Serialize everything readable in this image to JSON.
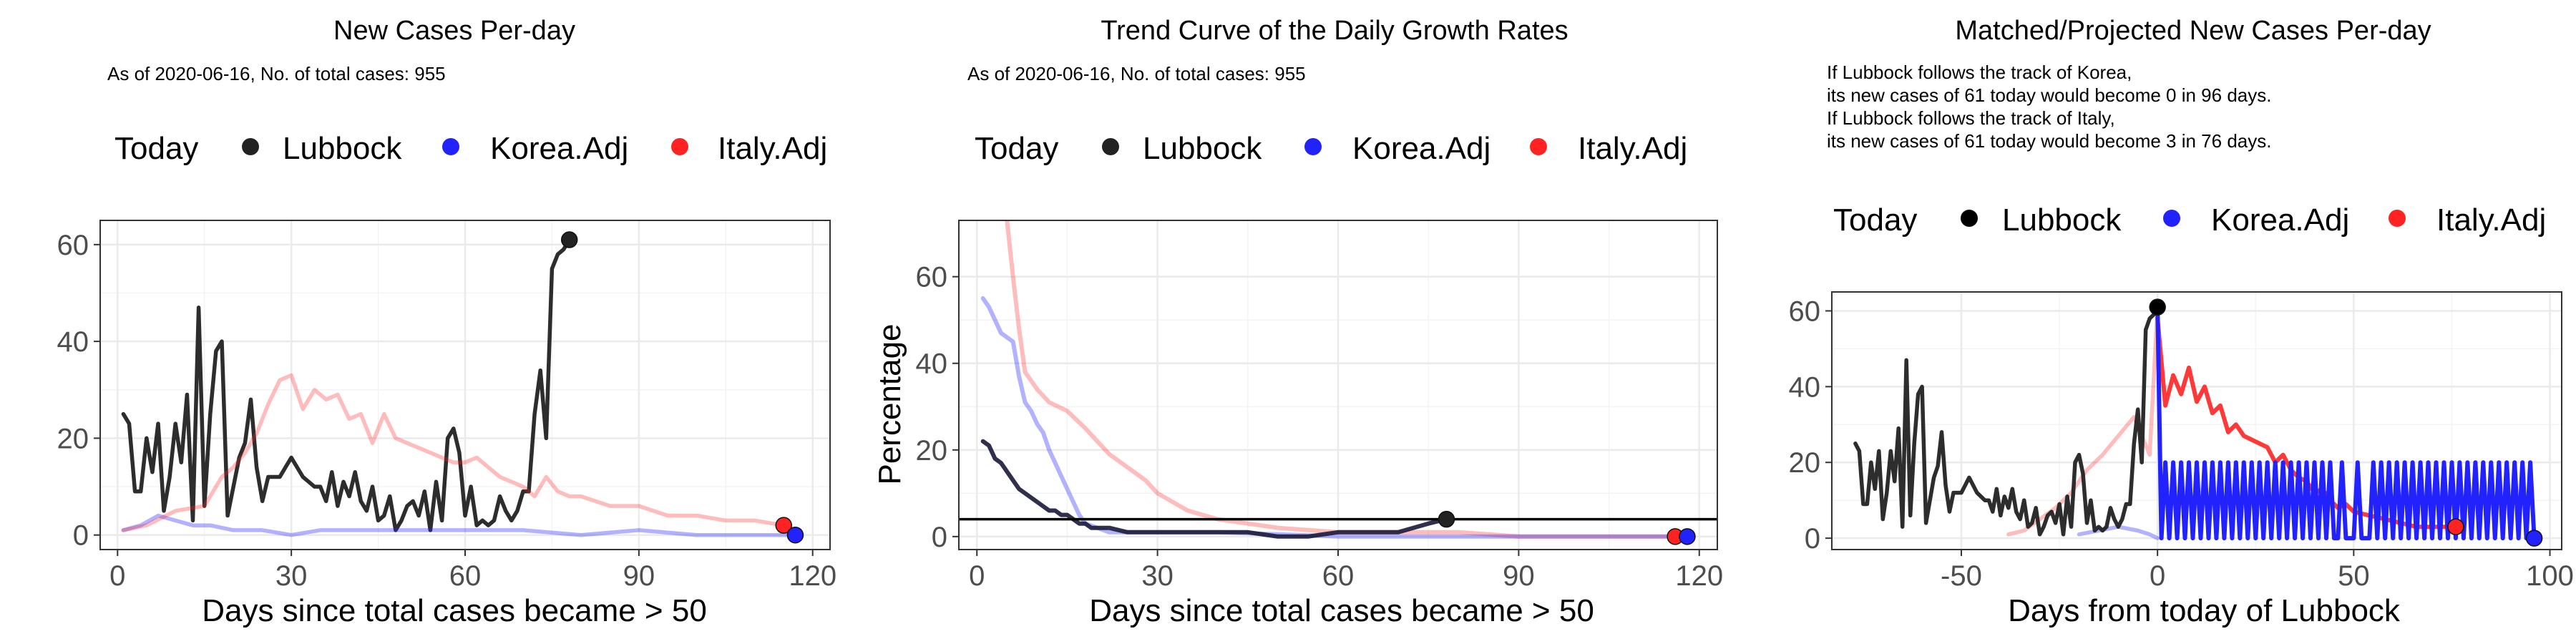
{
  "legend_today_label": "Today",
  "colors": {
    "lubbock": "#222222",
    "korea": "#2222ff",
    "italy": "#ff2222"
  },
  "chart_data": [
    {
      "type": "line",
      "title": "New Cases Per-day",
      "subtitle": "As of 2020-06-16, No. of total cases: 955",
      "xlabel": "Days since total cases became > 50",
      "ylabel": "",
      "xlim": [
        -3,
        123
      ],
      "ylim": [
        -3,
        65
      ],
      "xticks": [
        0,
        30,
        60,
        90,
        120
      ],
      "yticks": [
        0,
        20,
        40,
        60
      ],
      "legend": [
        "Lubbock",
        "Korea.Adj",
        "Italy.Adj"
      ],
      "series": [
        {
          "name": "Lubbock",
          "color": "#222222",
          "opacity": 0.95,
          "width": 5.5,
          "x": [
            1,
            2,
            3,
            4,
            5,
            6,
            7,
            8,
            9,
            10,
            11,
            12,
            13,
            14,
            15,
            16,
            17,
            18,
            19,
            20,
            21,
            22,
            23,
            24,
            25,
            26,
            27,
            28,
            29,
            30,
            31,
            32,
            33,
            34,
            35,
            36,
            37,
            38,
            39,
            40,
            41,
            42,
            43,
            44,
            45,
            46,
            47,
            48,
            49,
            50,
            51,
            52,
            53,
            54,
            55,
            56,
            57,
            58,
            59,
            60,
            61,
            62,
            63,
            64,
            65,
            66,
            67,
            68,
            69,
            70,
            71,
            72,
            73,
            74,
            75,
            76,
            77,
            78
          ],
          "y": [
            25,
            23,
            9,
            9,
            20,
            13,
            23,
            5,
            12,
            23,
            15,
            29,
            3,
            47,
            6,
            25,
            38,
            40,
            4,
            10,
            16,
            19,
            28,
            14,
            7,
            12,
            12,
            12,
            14,
            16,
            14,
            12,
            11,
            10,
            10,
            7,
            13,
            6,
            11,
            8,
            13,
            7,
            5,
            10,
            3,
            4,
            8,
            1,
            3,
            6,
            7,
            4,
            9,
            1,
            11,
            3,
            20,
            22,
            17,
            4,
            10,
            2,
            3,
            2,
            3,
            8,
            5,
            3,
            5,
            9,
            9,
            25,
            34,
            20,
            55,
            58,
            59,
            61
          ]
        },
        {
          "name": "Korea.Adj",
          "color": "#2222ff",
          "opacity": 0.35,
          "width": 5.5,
          "x": [
            1,
            4,
            7,
            10,
            13,
            16,
            20,
            25,
            30,
            35,
            40,
            50,
            60,
            70,
            80,
            90,
            100,
            110,
            117
          ],
          "y": [
            1,
            2,
            4,
            3,
            2,
            2,
            1,
            1,
            0,
            1,
            1,
            1,
            1,
            1,
            0,
            1,
            0,
            0,
            0
          ]
        },
        {
          "name": "Italy.Adj",
          "color": "#ff2222",
          "opacity": 0.3,
          "width": 5.5,
          "x": [
            1,
            5,
            10,
            15,
            18,
            20,
            22,
            24,
            26,
            28,
            30,
            32,
            34,
            36,
            38,
            40,
            42,
            44,
            46,
            48,
            50,
            52,
            54,
            56,
            58,
            60,
            62,
            64,
            66,
            68,
            70,
            72,
            74,
            76,
            78,
            80,
            85,
            90,
            95,
            100,
            105,
            110,
            115
          ],
          "y": [
            1,
            2,
            5,
            6,
            12,
            14,
            17,
            21,
            27,
            32,
            33,
            26,
            30,
            28,
            29,
            24,
            25,
            19,
            25,
            20,
            19,
            18,
            17,
            16,
            15,
            15,
            16,
            14,
            12,
            11,
            10,
            8,
            12,
            9,
            8,
            8,
            6,
            6,
            4,
            4,
            3,
            3,
            2
          ]
        }
      ],
      "today_points": [
        {
          "name": "Lubbock",
          "x": 78,
          "y": 61,
          "color": "#222222"
        },
        {
          "name": "Italy.Adj",
          "x": 115,
          "y": 2,
          "color": "#ff2222"
        },
        {
          "name": "Korea.Adj",
          "x": 117,
          "y": 0,
          "color": "#2222ff"
        }
      ]
    },
    {
      "type": "line",
      "title": "Trend Curve of the Daily Growth Rates",
      "subtitle": "As of 2020-06-16, No. of total cases: 955",
      "xlabel": "Days since total cases became > 50",
      "ylabel": "Percentage",
      "xlim": [
        -3,
        123
      ],
      "ylim": [
        -3,
        73
      ],
      "xticks": [
        0,
        30,
        60,
        90,
        120
      ],
      "yticks": [
        0,
        20,
        40,
        60
      ],
      "hline": 4,
      "legend": [
        "Lubbock",
        "Korea.Adj",
        "Italy.Adj"
      ],
      "series": [
        {
          "name": "Italy.Adj",
          "color": "#ff2222",
          "opacity": 0.3,
          "width": 6,
          "x": [
            5,
            6,
            7,
            8,
            10,
            12,
            15,
            18,
            20,
            22,
            25,
            28,
            30,
            35,
            40,
            45,
            50,
            60,
            70,
            80,
            90,
            100,
            110,
            116
          ],
          "y": [
            73,
            60,
            48,
            38,
            34,
            31,
            29,
            25,
            22,
            19,
            16,
            13,
            10,
            6,
            4,
            3,
            2,
            1,
            1,
            1,
            0,
            0,
            0,
            0
          ]
        },
        {
          "name": "Korea.Adj",
          "color": "#2222ff",
          "opacity": 0.35,
          "width": 6,
          "x": [
            1,
            2,
            3,
            4,
            5,
            6,
            7,
            8,
            9,
            10,
            11,
            12,
            13,
            14,
            15,
            16,
            17,
            18,
            20,
            22,
            25,
            30,
            40,
            60,
            80,
            100,
            118
          ],
          "y": [
            55,
            53,
            50,
            47,
            46,
            45,
            37,
            31,
            29,
            26,
            24,
            20,
            17,
            14,
            11,
            8,
            5,
            3,
            2,
            1,
            1,
            1,
            1,
            0,
            0,
            0,
            0
          ]
        },
        {
          "name": "Lubbock",
          "color": "#1a1a3a",
          "opacity": 0.9,
          "width": 6,
          "x": [
            1,
            2,
            3,
            4,
            5,
            6,
            7,
            8,
            9,
            10,
            11,
            12,
            13,
            14,
            15,
            16,
            17,
            18,
            19,
            20,
            22,
            25,
            30,
            35,
            40,
            45,
            50,
            55,
            60,
            65,
            70,
            75,
            78
          ],
          "y": [
            22,
            21,
            18,
            17,
            15,
            13,
            11,
            10,
            9,
            8,
            7,
            6,
            6,
            5,
            5,
            4,
            3,
            3,
            2,
            2,
            2,
            1,
            1,
            1,
            1,
            1,
            0,
            0,
            1,
            1,
            1,
            3,
            4
          ]
        }
      ],
      "today_points": [
        {
          "name": "Lubbock",
          "x": 78,
          "y": 4,
          "color": "#222222"
        },
        {
          "name": "Italy.Adj",
          "x": 116,
          "y": 0,
          "color": "#ff2222"
        },
        {
          "name": "Korea.Adj",
          "x": 118,
          "y": 0,
          "color": "#2222ff"
        }
      ]
    },
    {
      "type": "line",
      "title": "Matched/Projected New Cases Per-day",
      "notes": [
        "If Lubbock follows the track of Korea,",
        "its new cases of 61 today would become 0 in 96 days.",
        "If Lubbock follows the track of Italy,",
        "its new cases of 61 today would become 3 in 76 days."
      ],
      "xlabel": "Days from today of Lubbock",
      "ylabel": "",
      "xlim": [
        -83,
        103
      ],
      "ylim": [
        -3,
        65
      ],
      "xticks": [
        -50,
        0,
        50,
        100
      ],
      "yticks": [
        0,
        20,
        40,
        60
      ],
      "legend": [
        "Lubbock",
        "Korea.Adj",
        "Italy.Adj"
      ],
      "series": [
        {
          "name": "Italy.Adj (matched)",
          "color": "#ff2222",
          "opacity": 0.3,
          "width": 5.5,
          "x": [
            -38,
            -34,
            -30,
            -26,
            -22,
            -18,
            -14,
            -10,
            -6,
            -2,
            0
          ],
          "y": [
            1,
            2,
            5,
            8,
            12,
            18,
            22,
            27,
            32,
            22,
            61
          ]
        },
        {
          "name": "Korea.Adj (matched)",
          "color": "#2222ff",
          "opacity": 0.35,
          "width": 5.5,
          "x": [
            -20,
            -15,
            -10,
            -5,
            -2,
            0
          ],
          "y": [
            1,
            2,
            3,
            2,
            1,
            0
          ]
        },
        {
          "name": "Lubbock",
          "color": "#222222",
          "opacity": 0.95,
          "width": 5.5,
          "x": [
            -77,
            -76,
            -75,
            -74,
            -73,
            -72,
            -71,
            -70,
            -69,
            -68,
            -67,
            -66,
            -65,
            -64,
            -63,
            -62,
            -61,
            -60,
            -59,
            -58,
            -57,
            -56,
            -55,
            -54,
            -53,
            -52,
            -51,
            -50,
            -49,
            -48,
            -47,
            -46,
            -45,
            -44,
            -43,
            -42,
            -41,
            -40,
            -39,
            -38,
            -37,
            -36,
            -35,
            -34,
            -33,
            -32,
            -31,
            -30,
            -29,
            -28,
            -27,
            -26,
            -25,
            -24,
            -23,
            -22,
            -21,
            -20,
            -19,
            -18,
            -17,
            -16,
            -15,
            -14,
            -13,
            -12,
            -11,
            -10,
            -9,
            -8,
            -7,
            -6,
            -5,
            -4,
            -3,
            -2,
            -1,
            0
          ],
          "y": [
            25,
            23,
            9,
            9,
            20,
            13,
            23,
            5,
            12,
            23,
            15,
            29,
            3,
            47,
            6,
            25,
            38,
            40,
            4,
            10,
            16,
            19,
            28,
            14,
            7,
            12,
            12,
            12,
            14,
            16,
            14,
            12,
            11,
            10,
            10,
            7,
            13,
            6,
            11,
            8,
            13,
            7,
            5,
            10,
            3,
            4,
            8,
            1,
            3,
            6,
            7,
            4,
            9,
            1,
            11,
            3,
            20,
            22,
            17,
            4,
            10,
            2,
            3,
            2,
            3,
            8,
            5,
            3,
            5,
            9,
            9,
            25,
            34,
            20,
            55,
            58,
            59,
            61
          ]
        },
        {
          "name": "Italy.Adj (projected)",
          "color": "#ff2222",
          "opacity": 0.9,
          "width": 6,
          "x": [
            0,
            2,
            4,
            6,
            8,
            10,
            12,
            14,
            16,
            18,
            20,
            22,
            24,
            26,
            28,
            30,
            32,
            34,
            36,
            38,
            40,
            42,
            44,
            46,
            48,
            50,
            54,
            58,
            62,
            66,
            70,
            74,
            76
          ],
          "y": [
            58,
            35,
            43,
            38,
            45,
            36,
            40,
            33,
            35,
            28,
            30,
            27,
            26,
            25,
            24,
            20,
            22,
            18,
            16,
            15,
            12,
            13,
            10,
            8,
            9,
            7,
            6,
            5,
            4,
            3,
            3,
            3,
            3
          ]
        },
        {
          "name": "Korea.Adj (projected)",
          "color": "#2222ff",
          "opacity": 1,
          "width": 6,
          "x": [
            0,
            1,
            2,
            3,
            4,
            5,
            6,
            7,
            8,
            9,
            10,
            11,
            12,
            13,
            14,
            15,
            16,
            17,
            18,
            19,
            20,
            21,
            22,
            23,
            24,
            25,
            26,
            27,
            28,
            29,
            30,
            31,
            32,
            33,
            34,
            35,
            36,
            37,
            38,
            39,
            40,
            41,
            42,
            43,
            44,
            45,
            46,
            47,
            48,
            49,
            50,
            51,
            52,
            53,
            54,
            55,
            56,
            57,
            58,
            59,
            60,
            61,
            62,
            63,
            64,
            65,
            66,
            67,
            68,
            69,
            70,
            71,
            72,
            73,
            74,
            75,
            76,
            77,
            78,
            79,
            80,
            81,
            82,
            83,
            84,
            85,
            86,
            87,
            88,
            89,
            90,
            91,
            92,
            93,
            94,
            95,
            96
          ],
          "y": [
            61,
            0,
            20,
            0,
            20,
            0,
            20,
            0,
            20,
            0,
            20,
            0,
            20,
            0,
            20,
            0,
            20,
            0,
            20,
            0,
            20,
            0,
            20,
            0,
            20,
            0,
            20,
            0,
            20,
            0,
            20,
            0,
            20,
            0,
            20,
            0,
            20,
            0,
            20,
            0,
            20,
            0,
            20,
            0,
            20,
            0,
            0,
            20,
            0,
            0,
            0,
            20,
            0,
            0,
            0,
            20,
            0,
            20,
            0,
            20,
            0,
            20,
            0,
            20,
            0,
            20,
            0,
            20,
            0,
            20,
            0,
            20,
            0,
            20,
            0,
            20,
            0,
            20,
            0,
            20,
            0,
            20,
            0,
            20,
            0,
            20,
            0,
            20,
            0,
            20,
            0,
            20,
            0,
            20,
            0,
            20,
            0
          ]
        }
      ],
      "today_points": [
        {
          "name": "Lubbock",
          "x": 0,
          "y": 61,
          "color": "#000000"
        },
        {
          "name": "Italy.Adj",
          "x": 76,
          "y": 3,
          "color": "#ff2222"
        },
        {
          "name": "Korea.Adj",
          "x": 96,
          "y": 0,
          "color": "#2222ff"
        }
      ]
    }
  ]
}
